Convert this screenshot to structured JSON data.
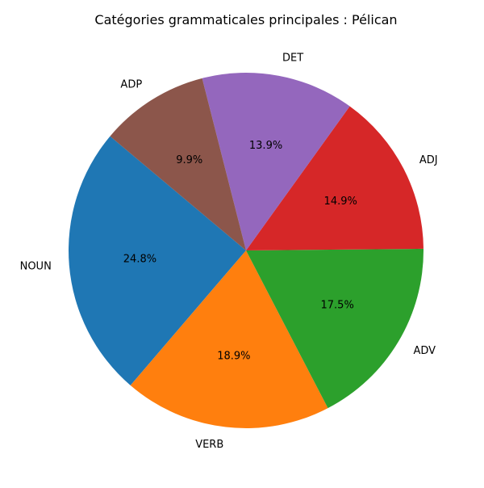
{
  "chart_data": {
    "type": "pie",
    "title": "Catégories grammaticales principales : Pélican",
    "start_angle_deg": 140,
    "direction": "counterclockwise",
    "labels": [
      "NOUN",
      "VERB",
      "ADV",
      "ADJ",
      "DET",
      "ADP"
    ],
    "values": [
      24.8,
      18.9,
      17.5,
      14.9,
      13.9,
      9.9
    ],
    "pct_labels": [
      "24.8%",
      "18.9%",
      "17.5%",
      "14.9%",
      "13.9%",
      "9.9%"
    ],
    "colors": [
      "#1f77b4",
      "#ff7f0e",
      "#2ca02c",
      "#d62728",
      "#9467bd",
      "#8c564b"
    ]
  }
}
